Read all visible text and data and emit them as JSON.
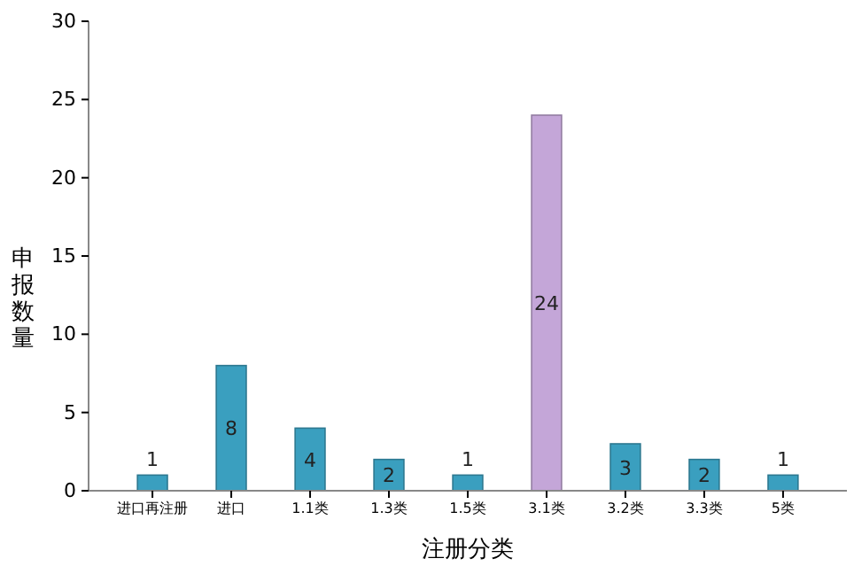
{
  "chart_data": {
    "type": "bar",
    "xlabel": "注册分类",
    "ylabel": "申报数量",
    "categories": [
      "进口再注册",
      "进口",
      "1.1类",
      "1.3类",
      "1.5类",
      "3.1类",
      "3.2类",
      "3.3类",
      "5类"
    ],
    "values": [
      1,
      8,
      4,
      2,
      1,
      24,
      3,
      2,
      1
    ],
    "colors": [
      "#3a9fbf",
      "#3a9fbf",
      "#3a9fbf",
      "#3a9fbf",
      "#3a9fbf",
      "#c4a6d8",
      "#3a9fbf",
      "#3a9fbf",
      "#3a9fbf"
    ],
    "ylim": [
      0,
      30
    ],
    "yticks": [
      0,
      5,
      10,
      15,
      20,
      25,
      30
    ],
    "grid": false,
    "data_labels": true
  }
}
